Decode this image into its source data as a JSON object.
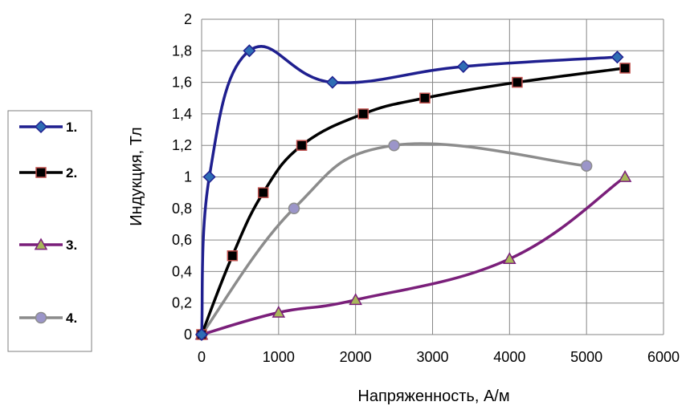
{
  "chart_data": {
    "type": "line",
    "xlabel": "Напряженность, А/м",
    "ylabel": "Индукция, Тл",
    "xlim": [
      0,
      6000
    ],
    "ylim": [
      0,
      2
    ],
    "x_ticks": [
      0,
      1000,
      2000,
      3000,
      4000,
      5000,
      6000
    ],
    "x_tick_labels": [
      "0",
      "1000",
      "2000",
      "3000",
      "4000",
      "5000",
      "6000"
    ],
    "y_ticks": [
      0,
      0.2,
      0.4,
      0.6,
      0.8,
      1,
      1.2,
      1.4,
      1.6,
      1.8,
      2
    ],
    "y_tick_labels": [
      "0",
      "0,2",
      "0,4",
      "0,6",
      "0,8",
      "1",
      "1,2",
      "1,4",
      "1,6",
      "1,8",
      "2"
    ],
    "grid": true,
    "legend_position": "left",
    "series": [
      {
        "name": "1.",
        "color": "#1f1f8f",
        "marker": "diamond",
        "marker_fill": "#2e6db4",
        "points": [
          [
            0,
            0
          ],
          [
            100,
            1.0
          ],
          [
            620,
            1.8
          ],
          [
            1700,
            1.6
          ],
          [
            3400,
            1.7
          ],
          [
            5400,
            1.76
          ]
        ]
      },
      {
        "name": "2.",
        "color": "#000000",
        "marker": "square",
        "marker_fill": "#000000",
        "marker_stroke": "#c0504d",
        "points": [
          [
            0,
            0
          ],
          [
            400,
            0.5
          ],
          [
            800,
            0.9
          ],
          [
            1300,
            1.2
          ],
          [
            2100,
            1.4
          ],
          [
            2900,
            1.5
          ],
          [
            4100,
            1.6
          ],
          [
            5500,
            1.69
          ]
        ]
      },
      {
        "name": "3.",
        "color": "#7a1f7a",
        "marker": "triangle",
        "marker_fill": "#a8b85a",
        "points": [
          [
            0,
            0
          ],
          [
            1000,
            0.14
          ],
          [
            2000,
            0.22
          ],
          [
            4000,
            0.48
          ],
          [
            5500,
            1.0
          ]
        ]
      },
      {
        "name": "4.",
        "color": "#8c8c8c",
        "marker": "circle",
        "marker_fill": "#9b95c9",
        "points": [
          [
            0,
            0
          ],
          [
            1200,
            0.8
          ],
          [
            2500,
            1.2
          ],
          [
            5000,
            1.07
          ]
        ]
      }
    ]
  }
}
